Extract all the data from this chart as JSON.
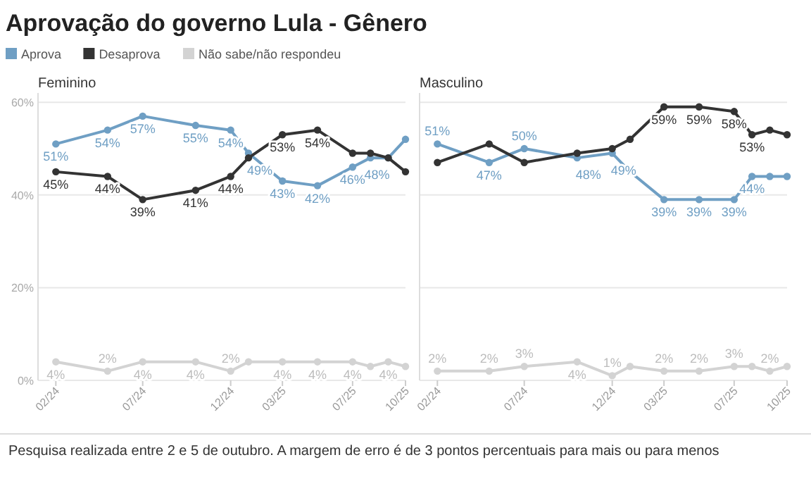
{
  "chart_data": [
    {
      "type": "line",
      "title": "Aprovação do governo Lula - Gênero",
      "subtitle": "Feminino",
      "legend": "top left",
      "grid": "y",
      "marker": "circle",
      "line_style": "solid",
      "tick_labels": "xy",
      "x": [
        "2024-02",
        "2024-05",
        "2024-07",
        "2024-10",
        "2024-12",
        "2025-01",
        "2025-03",
        "2025-05",
        "2025-07",
        "2025-08",
        "2025-09",
        "2025-10"
      ],
      "xlim": [
        "2024-01",
        "2025-10"
      ],
      "xticks": [
        {
          "value": "2024-02",
          "label": "02/24"
        },
        {
          "value": "2024-07",
          "label": "07/24"
        },
        {
          "value": "2024-12",
          "label": "12/24"
        },
        {
          "value": "2025-03",
          "label": "03/25"
        },
        {
          "value": "2025-07",
          "label": "07/25"
        },
        {
          "value": "2025-10",
          "label": "10/25"
        }
      ],
      "ylim": [
        0,
        62
      ],
      "yticks": [
        {
          "value": 0,
          "label": "0%"
        },
        {
          "value": 20,
          "label": "20%"
        },
        {
          "value": 40,
          "label": "40%"
        },
        {
          "value": 60,
          "label": "60%"
        }
      ],
      "series": [
        {
          "name": "Aprova",
          "color": "#6f9fc4",
          "values": [
            51,
            54,
            57,
            55,
            54,
            49,
            43,
            42,
            46,
            48,
            48,
            52
          ],
          "value_labels": [
            "51%",
            "54%",
            "57%",
            "55%",
            "54%",
            "49%",
            "43%",
            "42%",
            "46%",
            null,
            "48%",
            null
          ]
        },
        {
          "name": "Desaprova",
          "color": "#333333",
          "values": [
            45,
            44,
            39,
            41,
            44,
            48,
            53,
            54,
            49,
            49,
            48,
            45
          ],
          "value_labels": [
            "45%",
            "44%",
            "39%",
            "41%",
            "44%",
            null,
            "53%",
            "54%",
            null,
            null,
            null,
            null
          ]
        },
        {
          "name": "Não sabe/não respondeu",
          "color": "#d3d3d3",
          "values": [
            4,
            2,
            4,
            4,
            2,
            4,
            4,
            4,
            4,
            3,
            4,
            3
          ],
          "value_labels": [
            "4%",
            "2%",
            "4%",
            "4%",
            "2%",
            null,
            "4%",
            "4%",
            "4%",
            null,
            "4%",
            null
          ]
        }
      ],
      "annotations": [
        "Pesquisa realizada entre 2 e 5 de outubro. A margem de erro é de 3 pontos percentuais para mais ou para menos"
      ]
    },
    {
      "type": "line",
      "subtitle": "Masculino",
      "grid": "y",
      "marker": "circle",
      "line_style": "solid",
      "tick_labels": "x",
      "x": [
        "2024-02",
        "2024-05",
        "2024-07",
        "2024-10",
        "2024-12",
        "2025-01",
        "2025-03",
        "2025-05",
        "2025-07",
        "2025-08",
        "2025-09",
        "2025-10"
      ],
      "xlim": [
        "2024-01",
        "2025-10"
      ],
      "xticks": [
        {
          "value": "2024-02",
          "label": "02/24"
        },
        {
          "value": "2024-07",
          "label": "07/24"
        },
        {
          "value": "2024-12",
          "label": "12/24"
        },
        {
          "value": "2025-03",
          "label": "03/25"
        },
        {
          "value": "2025-07",
          "label": "07/25"
        },
        {
          "value": "2025-10",
          "label": "10/25"
        }
      ],
      "ylim": [
        0,
        62
      ],
      "yticks": [
        0,
        20,
        40,
        60
      ],
      "series": [
        {
          "color": "#6f9fc4",
          "values": [
            51,
            47,
            50,
            48,
            49,
            45,
            39,
            39,
            39,
            44,
            44,
            44
          ],
          "value_labels": [
            "51%",
            "47%",
            "50%",
            "48%",
            "49%",
            null,
            "39%",
            "39%",
            "39%",
            "44%",
            null,
            null
          ]
        },
        {
          "color": "#333333",
          "values": [
            47,
            51,
            47,
            49,
            50,
            52,
            59,
            59,
            58,
            53,
            54,
            53
          ],
          "value_labels": [
            null,
            null,
            null,
            null,
            null,
            null,
            "59%",
            "59%",
            "58%",
            "53%",
            null,
            null
          ]
        },
        {
          "color": "#d3d3d3",
          "values": [
            2,
            2,
            3,
            4,
            1,
            3,
            2,
            2,
            3,
            3,
            2,
            3
          ],
          "value_labels": [
            "2%",
            "2%",
            "3%",
            "4%",
            "1%",
            null,
            "2%",
            "2%",
            "3%",
            null,
            "2%",
            null
          ]
        }
      ]
    }
  ]
}
